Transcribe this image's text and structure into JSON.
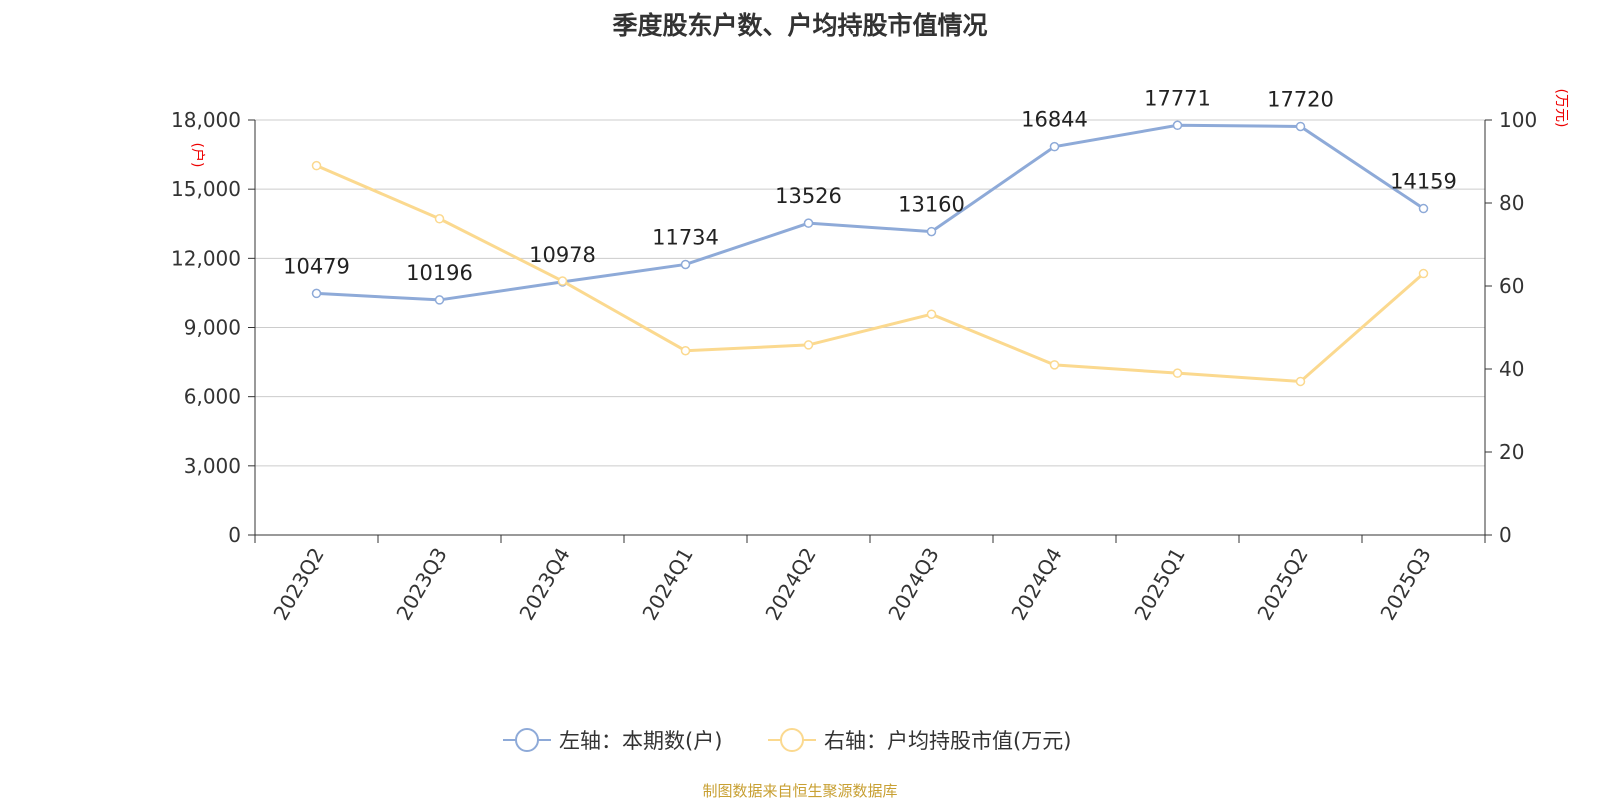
{
  "title": "季度股东户数、户均持股市值情况",
  "source": "制图数据来自恒生聚源数据库",
  "chart_data": {
    "type": "line",
    "categories": [
      "2023Q2",
      "2023Q3",
      "2023Q4",
      "2024Q1",
      "2024Q2",
      "2024Q3",
      "2024Q4",
      "2025Q1",
      "2025Q2",
      "2025Q3"
    ],
    "y_left": {
      "unit": "(户)",
      "ylim": [
        0,
        18000
      ],
      "ticks": [
        0,
        3000,
        6000,
        9000,
        12000,
        15000,
        18000
      ],
      "tick_labels": [
        "0",
        "3,000",
        "6,000",
        "9,000",
        "12,000",
        "15,000",
        "18,000"
      ]
    },
    "y_right": {
      "unit": "(万元)",
      "ylim": [
        0,
        100
      ],
      "ticks": [
        0,
        20,
        40,
        60,
        80,
        100
      ],
      "tick_labels": [
        "0",
        "20",
        "40",
        "60",
        "80",
        "100"
      ]
    },
    "grid": true,
    "legend_position": "bottom",
    "series": [
      {
        "name": "左轴：本期数(户)",
        "axis": "left",
        "color": "#8eaad8",
        "values": [
          10479,
          10196,
          10978,
          11734,
          13526,
          13160,
          16844,
          17771,
          17720,
          14159
        ],
        "show_labels": true
      },
      {
        "name": "右轴：户均持股市值(万元)",
        "axis": "right",
        "color": "#fbd98f",
        "values": [
          89.0,
          76.2,
          61.2,
          44.4,
          45.8,
          53.2,
          41.0,
          39.0,
          37.0,
          63.0
        ],
        "show_labels": false
      }
    ]
  }
}
